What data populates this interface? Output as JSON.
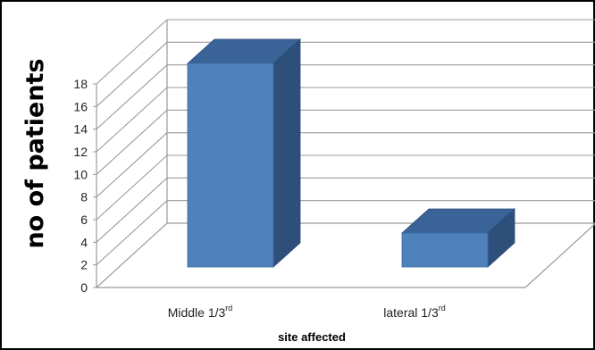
{
  "chart_data": {
    "type": "bar",
    "categories": [
      {
        "main": "Middle 1/3",
        "sup": "rd"
      },
      {
        "main": "lateral 1/3",
        "sup": "rd"
      }
    ],
    "values": [
      18,
      3
    ],
    "ylim": [
      0,
      18
    ],
    "yticks": [
      0,
      2,
      4,
      6,
      8,
      10,
      12,
      14,
      16,
      18
    ],
    "xlabel": "site affected",
    "ylabel": "no of patients",
    "grid": true,
    "legend": "none",
    "colors": {
      "front": "#4F81BD",
      "top": "#3A6398",
      "side": "#2E4F7A",
      "grid": "#9a9a9a"
    }
  }
}
